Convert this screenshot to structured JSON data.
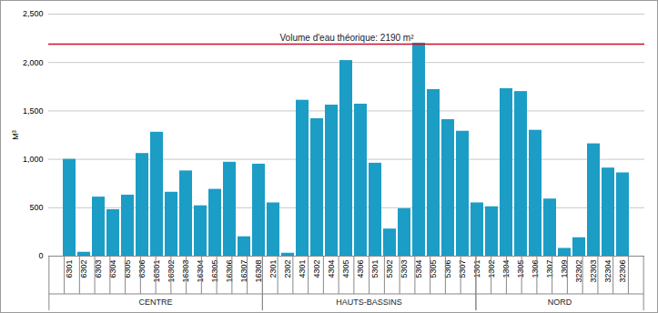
{
  "chart_data": {
    "type": "bar",
    "y_label": "M³",
    "categories": [
      "6301",
      "6302",
      "6303",
      "6304",
      "6305",
      "6306",
      "16301",
      "16302",
      "16303",
      "16304",
      "16305",
      "16306",
      "16307",
      "16308",
      "2301",
      "2302",
      "4301",
      "4302",
      "4304",
      "4305",
      "4306",
      "5301",
      "5302",
      "5303",
      "5304",
      "5305",
      "5306",
      "5307",
      "1301",
      "1302",
      "1304",
      "1305",
      "1306",
      "1307",
      "1309",
      "32302",
      "32303",
      "32304",
      "32306"
    ],
    "group": [
      "CENTRE",
      "CENTRE",
      "CENTRE",
      "CENTRE",
      "CENTRE",
      "CENTRE",
      "CENTRE",
      "CENTRE",
      "CENTRE",
      "CENTRE",
      "CENTRE",
      "CENTRE",
      "CENTRE",
      "CENTRE",
      "HAUTS-BASSINS",
      "HAUTS-BASSINS",
      "HAUTS-BASSINS",
      "HAUTS-BASSINS",
      "HAUTS-BASSINS",
      "HAUTS-BASSINS",
      "HAUTS-BASSINS",
      "HAUTS-BASSINS",
      "HAUTS-BASSINS",
      "HAUTS-BASSINS",
      "HAUTS-BASSINS",
      "HAUTS-BASSINS",
      "HAUTS-BASSINS",
      "HAUTS-BASSINS",
      "NORD",
      "NORD",
      "NORD",
      "NORD",
      "NORD",
      "NORD",
      "NORD",
      "NORD",
      "NORD",
      "NORD",
      "NORD"
    ],
    "values": [
      1000,
      40,
      610,
      480,
      630,
      1060,
      1280,
      660,
      880,
      520,
      690,
      970,
      200,
      950,
      550,
      30,
      1610,
      1420,
      1560,
      2020,
      1570,
      960,
      280,
      490,
      2200,
      1720,
      1410,
      1290,
      550,
      510,
      1730,
      1700,
      1300,
      590,
      80,
      190,
      1160,
      910,
      860
    ],
    "color": "#1b9dc6",
    "ylim": [
      0,
      2500
    ],
    "yticks": [
      0,
      500,
      1000,
      1500,
      2000,
      2500
    ],
    "grid": true,
    "annotations": [
      {
        "text": "Volume d'eau théorique: 2190 m²",
        "y": 2190,
        "color": "#c8102e"
      }
    ]
  }
}
